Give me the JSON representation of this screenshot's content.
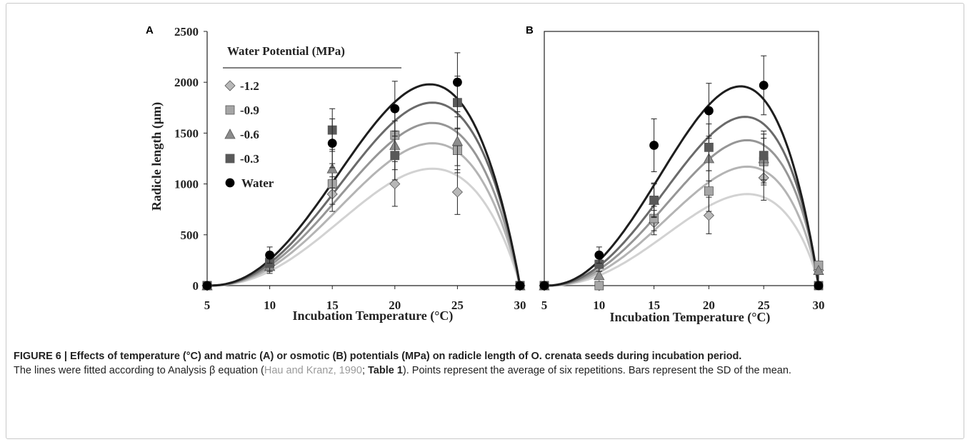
{
  "panels": [
    "A",
    "B"
  ],
  "legend": {
    "title": "Water Potential (MPa)",
    "entries": [
      "-1.2",
      "-0.9",
      "-0.6",
      "-0.3",
      "Water"
    ]
  },
  "styles": {
    "-1.2": {
      "marker": "diamond",
      "fill": "#b8b8b8",
      "line": "#d2d2d2"
    },
    "-0.9": {
      "marker": "square",
      "fill": "#a6a6a6",
      "line": "#b4b4b4"
    },
    "-0.6": {
      "marker": "triangle",
      "fill": "#8c8c8c",
      "line": "#969696"
    },
    "-0.3": {
      "marker": "square",
      "fill": "#595959",
      "line": "#6a6a6a"
    },
    "Water": {
      "marker": "circle",
      "fill": "#000000",
      "line": "#1e1e1e"
    }
  },
  "chart_data": [
    {
      "type": "scatter",
      "panel": "A",
      "xlabel": "Incubation Temperature (°C)",
      "ylabel": "Radicle length (µm)",
      "xlim": [
        5,
        30
      ],
      "ylim": [
        0,
        2500
      ],
      "xticks": [
        5,
        10,
        15,
        20,
        25,
        30
      ],
      "yticks": [
        0,
        500,
        1000,
        1500,
        2000,
        2500
      ],
      "legend_position": "top-left",
      "x": [
        5,
        10,
        15,
        20,
        25,
        30
      ],
      "series": [
        {
          "name": "-1.2",
          "values": [
            0,
            200,
            900,
            1000,
            920,
            0
          ],
          "error": [
            0,
            60,
            170,
            220,
            220,
            0
          ],
          "fit_peak": {
            "x": 23,
            "y": 1150
          }
        },
        {
          "name": "-0.9",
          "values": [
            0,
            230,
            1000,
            1480,
            1330,
            0
          ],
          "error": [
            0,
            70,
            200,
            230,
            220,
            0
          ],
          "fit_peak": {
            "x": 23,
            "y": 1400
          }
        },
        {
          "name": "-0.6",
          "values": [
            0,
            190,
            1150,
            1380,
            1420,
            0
          ],
          "error": [
            0,
            70,
            190,
            240,
            240,
            0
          ],
          "fit_peak": {
            "x": 23,
            "y": 1600
          }
        },
        {
          "name": "-0.3",
          "values": [
            0,
            220,
            1530,
            1280,
            1800,
            0
          ],
          "error": [
            0,
            80,
            210,
            240,
            260,
            0
          ],
          "fit_peak": {
            "x": 23,
            "y": 1800
          }
        },
        {
          "name": "Water",
          "values": [
            0,
            300,
            1400,
            1740,
            2000,
            0
          ],
          "error": [
            0,
            80,
            240,
            270,
            290,
            0
          ],
          "fit_peak": {
            "x": 22.8,
            "y": 1980
          }
        }
      ]
    },
    {
      "type": "scatter",
      "panel": "B",
      "xlabel": "Incubation Temperature (°C)",
      "ylabel": "",
      "xlim": [
        5,
        30
      ],
      "ylim": [
        0,
        2500
      ],
      "xticks": [
        5,
        10,
        15,
        20,
        25,
        30
      ],
      "yticks": [],
      "x": [
        5,
        10,
        15,
        20,
        25,
        30
      ],
      "series": [
        {
          "name": "-1.2",
          "values": [
            0,
            0,
            620,
            690,
            1060,
            150
          ],
          "error": [
            0,
            0,
            120,
            180,
            220,
            0
          ],
          "fit_peak": {
            "x": 23.5,
            "y": 900
          }
        },
        {
          "name": "-0.9",
          "values": [
            0,
            0,
            660,
            930,
            1220,
            200
          ],
          "error": [
            0,
            0,
            120,
            200,
            230,
            0
          ],
          "fit_peak": {
            "x": 23.5,
            "y": 1170
          }
        },
        {
          "name": "-0.6",
          "values": [
            0,
            100,
            840,
            1250,
            1250,
            150
          ],
          "error": [
            0,
            40,
            160,
            220,
            240,
            0
          ],
          "fit_peak": {
            "x": 23.5,
            "y": 1430
          }
        },
        {
          "name": "-0.3",
          "values": [
            0,
            210,
            840,
            1360,
            1280,
            0
          ],
          "error": [
            0,
            70,
            170,
            230,
            240,
            0
          ],
          "fit_peak": {
            "x": 23.3,
            "y": 1660
          }
        },
        {
          "name": "Water",
          "values": [
            0,
            300,
            1380,
            1720,
            1970,
            0
          ],
          "error": [
            0,
            80,
            260,
            270,
            290,
            0
          ],
          "fit_peak": {
            "x": 22.9,
            "y": 1960
          }
        }
      ]
    }
  ],
  "caption": {
    "title": "FIGURE 6 | Effects of temperature (°C) and matric (A) or osmotic (B) potentials (MPa) on radicle length of O. crenata seeds during incubation period.",
    "text_1": "The lines were fitted according to Analysis β equation (",
    "reference": "Hau and Kranz, 1990",
    "text_2": "; ",
    "table_ref": "Table 1",
    "text_3": "). Points represent the average of six repetitions. Bars represent the SD of the mean."
  }
}
